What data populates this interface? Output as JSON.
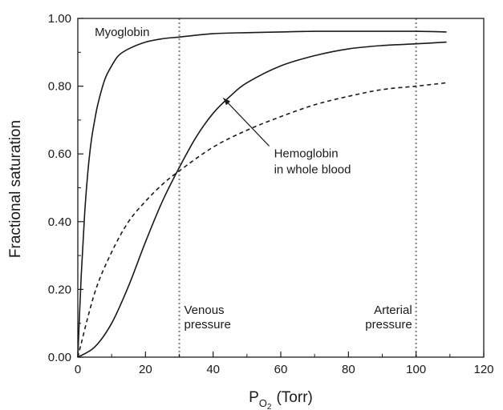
{
  "chart_data": {
    "type": "line",
    "title": "",
    "xlabel": "P",
    "xlabel_subscript": "O",
    "xlabel_subscript2": "2",
    "xlabel_unit": "(Torr)",
    "ylabel": "Fractional saturation",
    "xlim": [
      0,
      120
    ],
    "ylim": [
      0,
      1.0
    ],
    "x_ticks": [
      0,
      20,
      40,
      60,
      80,
      100,
      120
    ],
    "x_tick_labels": [
      "0",
      "20",
      "40",
      "60",
      "80",
      "100",
      "120"
    ],
    "y_ticks": [
      0,
      0.2,
      0.4,
      0.6,
      0.8,
      1.0
    ],
    "y_tick_labels": [
      "0.00",
      "0.20",
      "0.40",
      "0.60",
      "0.80",
      "1.00"
    ],
    "grid": false,
    "series": [
      {
        "name": "Myoglobin",
        "style": "solid",
        "x": [
          0,
          1,
          2,
          3,
          4,
          5,
          6,
          8,
          10,
          12,
          15,
          20,
          25,
          30,
          40,
          50,
          60,
          70,
          80,
          90,
          100,
          109
        ],
        "y": [
          0,
          0.24,
          0.42,
          0.55,
          0.64,
          0.7,
          0.75,
          0.82,
          0.86,
          0.89,
          0.91,
          0.93,
          0.94,
          0.945,
          0.955,
          0.958,
          0.96,
          0.962,
          0.962,
          0.962,
          0.962,
          0.96
        ]
      },
      {
        "name": "Hemoglobin in whole blood",
        "style": "solid",
        "x": [
          0,
          5,
          10,
          15,
          20,
          25,
          30,
          35,
          40,
          45,
          50,
          60,
          70,
          80,
          90,
          100,
          109
        ],
        "y": [
          0,
          0.03,
          0.1,
          0.21,
          0.34,
          0.46,
          0.56,
          0.65,
          0.72,
          0.77,
          0.81,
          0.86,
          0.89,
          0.91,
          0.92,
          0.925,
          0.93
        ]
      },
      {
        "style": "dashed",
        "x": [
          0,
          5,
          10,
          15,
          20,
          25,
          30,
          40,
          50,
          60,
          70,
          80,
          90,
          100,
          109
        ],
        "y": [
          0,
          0.19,
          0.31,
          0.4,
          0.46,
          0.51,
          0.55,
          0.62,
          0.67,
          0.71,
          0.745,
          0.77,
          0.79,
          0.8,
          0.81
        ]
      }
    ],
    "reference_lines": [
      {
        "x": 30,
        "label_lines": [
          "Venous",
          "pressure"
        ],
        "style": "dotted"
      },
      {
        "x": 100,
        "label_lines": [
          "Arterial",
          "pressure"
        ],
        "style": "dotted"
      }
    ],
    "annotations": [
      {
        "text": "Myoglobin",
        "x": 5,
        "y": 0.96
      },
      {
        "text_lines": [
          "Hemoglobin",
          "in whole blood"
        ],
        "x": 58,
        "y": 0.59,
        "arrow_to": {
          "x": 43,
          "y": 0.765
        }
      }
    ],
    "colors": {
      "line": "#1a1a1a",
      "reference": "#8c8c8c"
    }
  }
}
